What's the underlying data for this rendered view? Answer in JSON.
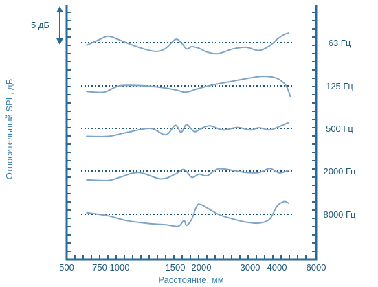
{
  "chart_data": {
    "type": "line",
    "xlabel": "Расстояние, мм",
    "ylabel": "Относительный SPL, дБ",
    "x_ticks": [
      "500",
      "750",
      "1000",
      "1500",
      "2000",
      "3000",
      "4000",
      "6000"
    ],
    "scale_bar_label": "5 дБ",
    "grid": false,
    "series": [
      {
        "name": "63 Гц",
        "x": [
          640,
          750,
          850,
          1000,
          1150,
          1300,
          1400,
          1500,
          1600,
          1700,
          1800,
          1950,
          2100,
          2300,
          2600,
          2900,
          3300,
          3700,
          4000,
          4300,
          4500
        ],
        "y": [
          -0.8,
          1.0,
          2.0,
          0.8,
          -1.5,
          -2.8,
          -1.8,
          1.0,
          0,
          -2.0,
          -1.3,
          -1.8,
          -3.0,
          -3.5,
          -2.0,
          -1.5,
          -2.5,
          -1.0,
          1.0,
          2.5,
          3.0
        ]
      },
      {
        "name": "125 Гц",
        "x": [
          640,
          800,
          1000,
          1200,
          1400,
          1550,
          1650,
          1750,
          1900,
          2200,
          2600,
          3000,
          3400,
          3800,
          4100,
          4400,
          4600
        ],
        "y": [
          -1.8,
          -2.0,
          0,
          0,
          -0.7,
          -1.5,
          -2.0,
          -1.8,
          -1.0,
          0.3,
          1.5,
          2.5,
          3.0,
          2.8,
          2.0,
          0,
          -3.5
        ]
      },
      {
        "name": "500 Гц",
        "x": [
          640,
          850,
          1050,
          1250,
          1400,
          1500,
          1600,
          1700,
          1850,
          2000,
          2150,
          2400,
          2700,
          3000,
          3300,
          3700,
          4100,
          4500
        ],
        "y": [
          -2.5,
          -2.5,
          -1.3,
          0,
          -2.0,
          1.0,
          -1.2,
          1.2,
          -1.0,
          0,
          0.8,
          -0.5,
          0.3,
          -0.5,
          0.2,
          -0.5,
          0.6,
          1.8
        ]
      },
      {
        "name": "2000 Гц",
        "x": [
          640,
          850,
          1000,
          1150,
          1350,
          1500,
          1650,
          1800,
          1950,
          2100,
          2300,
          2600,
          2900,
          3300,
          3700,
          4100,
          4500
        ],
        "y": [
          -2.8,
          -3.0,
          -2.0,
          -0.5,
          -2.5,
          -1.0,
          0.5,
          -2.0,
          -1.0,
          -1.5,
          0.7,
          0.2,
          -0.5,
          -0.5,
          0.8,
          -0.6,
          0.2
        ]
      },
      {
        "name": "8000 Гц",
        "x": [
          640,
          850,
          1050,
          1250,
          1400,
          1550,
          1650,
          1700,
          1800,
          1900,
          2000,
          2300,
          2600,
          2900,
          3300,
          3700,
          4000,
          4300,
          4500
        ],
        "y": [
          0.5,
          -0.5,
          -2.0,
          -3.0,
          -3.3,
          -3.8,
          -2.0,
          -3.5,
          -1.5,
          2.5,
          3.0,
          0,
          -1.5,
          -2.5,
          -2.8,
          -1.5,
          2.5,
          4.0,
          3.5
        ]
      }
    ]
  }
}
